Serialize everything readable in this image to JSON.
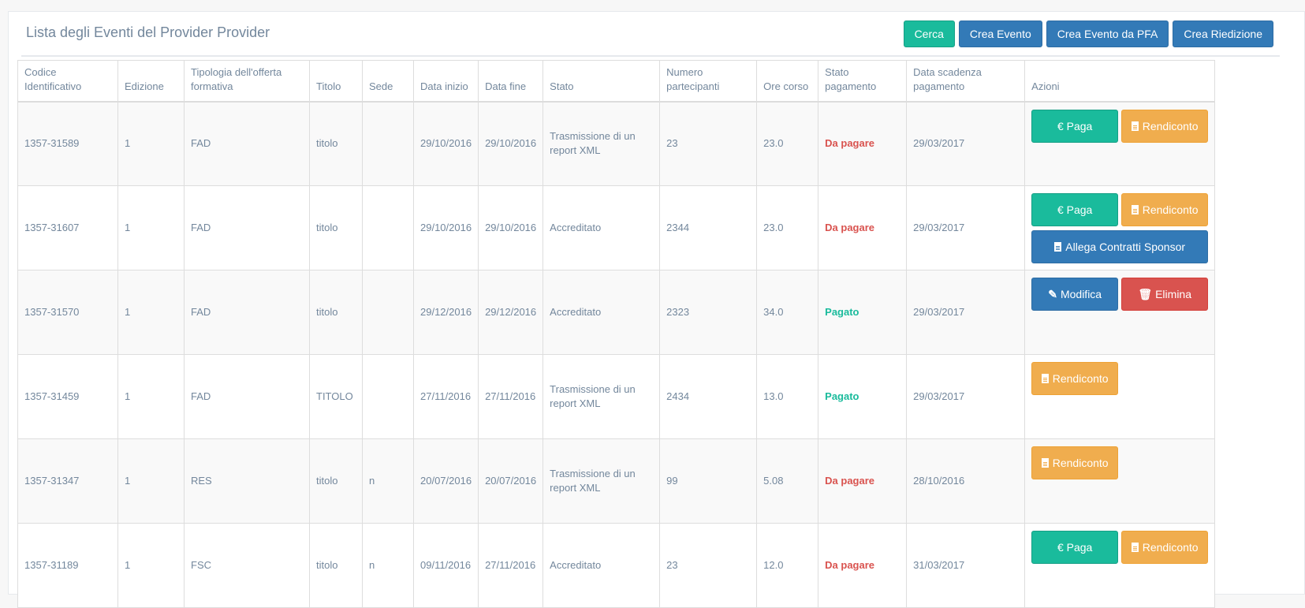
{
  "page": {
    "title": "Lista degli Eventi del Provider Provider",
    "buttons": {
      "cerca": "Cerca",
      "crea_evento": "Crea Evento",
      "crea_evento_pfa": "Crea Evento da PFA",
      "crea_riedizione": "Crea Riedizione"
    }
  },
  "colors": {
    "green": "#1abb9c",
    "blue": "#337ab7",
    "orange": "#f0ad4e",
    "red": "#d9534f",
    "text": "#73879c"
  },
  "table": {
    "headers": [
      "Codice Identificativo",
      "Edizione",
      "Tipologia dell'offerta formativa",
      "Titolo",
      "Sede",
      "Data inizio",
      "Data fine",
      "Stato",
      "Numero partecipanti",
      "Ore corso",
      "Stato pagamento",
      "Data scadenza pagamento",
      "Azioni"
    ],
    "action_labels": {
      "paga": "€ Paga",
      "rendiconto": "Rendiconto",
      "allega": "Allega Contratti Sponsor",
      "modifica": "Modifica",
      "elimina": "Elimina"
    },
    "rows": [
      {
        "codice": "1357-31589",
        "edizione": "1",
        "tipologia": "FAD",
        "titolo": "titolo",
        "sede": "",
        "data_inizio": "29/10/2016",
        "data_fine": "29/10/2016",
        "stato": "Trasmissione di un report XML",
        "partecipanti": "23",
        "ore": "23.0",
        "pagamento": "Da pagare",
        "scadenza": "29/03/2017"
      },
      {
        "codice": "1357-31607",
        "edizione": "1",
        "tipologia": "FAD",
        "titolo": "titolo",
        "sede": "",
        "data_inizio": "29/10/2016",
        "data_fine": "29/10/2016",
        "stato": "Accreditato",
        "partecipanti": "2344",
        "ore": "23.0",
        "pagamento": "Da pagare",
        "scadenza": "29/03/2017"
      },
      {
        "codice": "1357-31570",
        "edizione": "1",
        "tipologia": "FAD",
        "titolo": "titolo",
        "sede": "",
        "data_inizio": "29/12/2016",
        "data_fine": "29/12/2016",
        "stato": "Accreditato",
        "partecipanti": "2323",
        "ore": "34.0",
        "pagamento": "Pagato",
        "scadenza": "29/03/2017"
      },
      {
        "codice": "1357-31459",
        "edizione": "1",
        "tipologia": "FAD",
        "titolo": "TITOLO",
        "sede": "",
        "data_inizio": "27/11/2016",
        "data_fine": "27/11/2016",
        "stato": "Trasmissione di un report XML",
        "partecipanti": "2434",
        "ore": "13.0",
        "pagamento": "Pagato",
        "scadenza": "29/03/2017"
      },
      {
        "codice": "1357-31347",
        "edizione": "1",
        "tipologia": "RES",
        "titolo": "titolo",
        "sede": "n",
        "data_inizio": "20/07/2016",
        "data_fine": "20/07/2016",
        "stato": "Trasmissione di un report XML",
        "partecipanti": "99",
        "ore": "5.08",
        "pagamento": "Da pagare",
        "scadenza": "28/10/2016"
      },
      {
        "codice": "1357-31189",
        "edizione": "1",
        "tipologia": "FSC",
        "titolo": "titolo",
        "sede": "n",
        "data_inizio": "09/11/2016",
        "data_fine": "27/11/2016",
        "stato": "Accreditato",
        "partecipanti": "23",
        "ore": "12.0",
        "pagamento": "Da pagare",
        "scadenza": "31/03/2017"
      }
    ]
  }
}
